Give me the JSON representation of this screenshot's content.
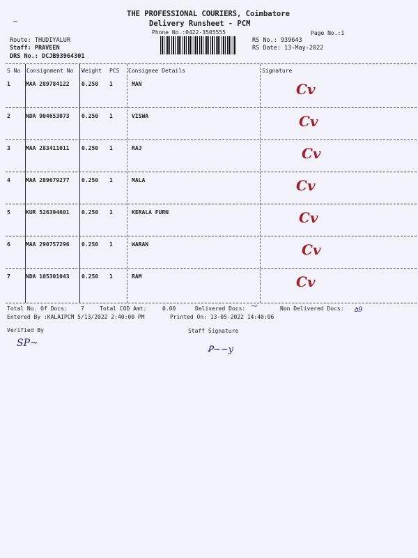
{
  "header": {
    "company": "THE PROFESSIONAL COURIERS, Coimbatore",
    "title": "Delivery Runsheet - PCM",
    "phone": "Phone No.:0422-3505555",
    "page_no": "Page No.:1",
    "route": "Route: THUDIYALUR",
    "staff": "Staff: PRAVEEN",
    "drs_no": "DRS No.: DCJB93964301",
    "rs_no": "RS No.: 939643",
    "rs_date": "RS Date: 13-May-2022"
  },
  "table": {
    "columns": [
      "S No",
      "Consignment No",
      "Weight",
      "PCS",
      "Consignee Details",
      "Signature"
    ],
    "rows": [
      {
        "sno": "1",
        "consignment": "MAA 289784122",
        "weight": "0.250",
        "pcs": "1",
        "consignee": "MAN"
      },
      {
        "sno": "2",
        "consignment": "NDA 904653073",
        "weight": "0.250",
        "pcs": "1",
        "consignee": "VISWA"
      },
      {
        "sno": "3",
        "consignment": "MAA 283411011",
        "weight": "0.250",
        "pcs": "1",
        "consignee": "RAJ"
      },
      {
        "sno": "4",
        "consignment": "MAA 289679277",
        "weight": "0.250",
        "pcs": "1",
        "consignee": "MALA"
      },
      {
        "sno": "5",
        "consignment": "KUR 526394601",
        "weight": "0.250",
        "pcs": "1",
        "consignee": "KERALA FURN"
      },
      {
        "sno": "6",
        "consignment": "MAA 290757296",
        "weight": "0.250",
        "pcs": "1",
        "consignee": "WARAN"
      },
      {
        "sno": "7",
        "consignment": "NDA 105301043",
        "weight": "0.250",
        "pcs": "1",
        "consignee": "RAM"
      }
    ]
  },
  "footer": {
    "total_docs_label": "Total No. Of Docs:",
    "total_docs": "7",
    "total_cod_label": "Total COD Amt:",
    "total_cod": "0.00",
    "delivered_label": "Delivered Docs:",
    "non_delivered_label": "Non Delivered Docs:",
    "entered_by": "Entered By :KALAIPCM 5/13/2022 2:40:00 PM",
    "printed_on": "Printed On: 13-05-2022 14:40:06",
    "verified_by": "Verified By",
    "staff_signature": "Staff Signature"
  },
  "colors": {
    "ink_signature": "#a0202a",
    "paper": "#f1f2fa"
  }
}
